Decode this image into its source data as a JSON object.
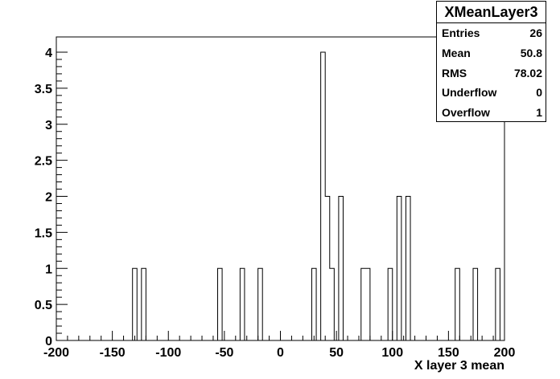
{
  "chart_data": {
    "type": "histogram",
    "title": "",
    "xlabel": "X layer 3 mean",
    "ylabel": "",
    "xlim": [
      -200,
      200
    ],
    "ylim": [
      0,
      4.2
    ],
    "bin_width": 4,
    "xticks": [
      "-200",
      "-150",
      "-100",
      "-50",
      "0",
      "50",
      "100",
      "150",
      "200"
    ],
    "yticks": [
      "0",
      "0.5",
      "1",
      "1.5",
      "2",
      "2.5",
      "3",
      "3.5",
      "4"
    ],
    "bins": [
      {
        "x": -132,
        "value": 1
      },
      {
        "x": -124,
        "value": 1
      },
      {
        "x": -56,
        "value": 1
      },
      {
        "x": -36,
        "value": 1
      },
      {
        "x": -20,
        "value": 1
      },
      {
        "x": 28,
        "value": 1
      },
      {
        "x": 36,
        "value": 4
      },
      {
        "x": 40,
        "value": 2
      },
      {
        "x": 44,
        "value": 1
      },
      {
        "x": 52,
        "value": 2
      },
      {
        "x": 72,
        "value": 1
      },
      {
        "x": 76,
        "value": 1
      },
      {
        "x": 96,
        "value": 1
      },
      {
        "x": 104,
        "value": 2
      },
      {
        "x": 112,
        "value": 2
      },
      {
        "x": 156,
        "value": 1
      },
      {
        "x": 172,
        "value": 1
      },
      {
        "x": 192,
        "value": 1
      }
    ]
  },
  "stats": {
    "title": "XMeanLayer3",
    "rows": [
      {
        "label": "Entries",
        "value": "26"
      },
      {
        "label": "Mean",
        "value": "50.8"
      },
      {
        "label": "RMS",
        "value": "78.02"
      },
      {
        "label": "Underflow",
        "value": "0"
      },
      {
        "label": "Overflow",
        "value": "1"
      }
    ]
  }
}
